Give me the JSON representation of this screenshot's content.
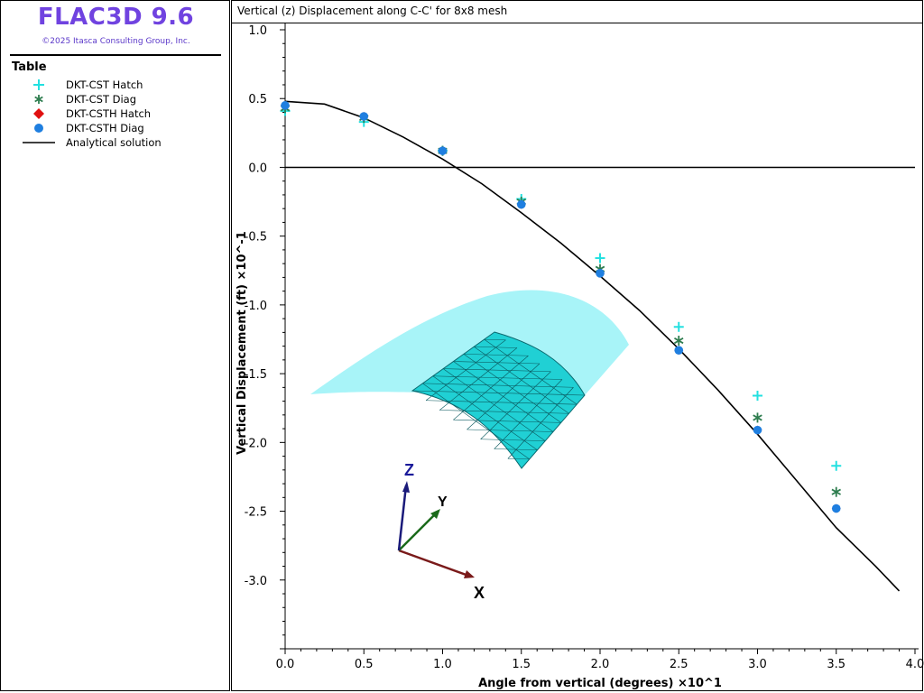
{
  "app": {
    "title": "FLAC3D 9.6",
    "copyright": "©2025 Itasca Consulting Group, Inc.",
    "accent_color": "#7043e0"
  },
  "legend": {
    "title": "Table",
    "items": [
      {
        "label": "DKT-CST Hatch",
        "symbol": "plus",
        "color": "#22e0e0"
      },
      {
        "label": "DKT-CST Diag",
        "symbol": "asterisk",
        "color": "#2e7d4f"
      },
      {
        "label": "DKT-CSTH Hatch",
        "symbol": "diamond",
        "color": "#e01010"
      },
      {
        "label": "DKT-CSTH Diag",
        "symbol": "circle",
        "color": "#1f7fe0"
      },
      {
        "label": "Analytical solution",
        "symbol": "line",
        "color": "#000000"
      }
    ]
  },
  "chart_data": {
    "type": "scatter",
    "title": "Vertical (z) Displacement along C-C' for 8x8 mesh",
    "xlabel": "Angle from vertical (degrees) ×10^1",
    "ylabel": "Vertical Displacement  (ft) ×10^-1",
    "xlim": [
      0,
      4.0
    ],
    "ylim": [
      -3.5,
      1.0
    ],
    "x_ticks": [
      "0.0",
      "0.5",
      "1.0",
      "1.5",
      "2.0",
      "2.5",
      "3.0",
      "3.5",
      "4.0"
    ],
    "y_ticks": [
      "1.0",
      "0.5",
      "0.0",
      "-0.5",
      "-1.0",
      "-1.5",
      "-2.0",
      "-2.5",
      "-3.0"
    ],
    "reference_line_y": 0.0,
    "series": [
      {
        "name": "DKT-CST Hatch",
        "marker": "plus",
        "color": "#22e0e0",
        "x": [
          0.0,
          0.5,
          1.0,
          1.5,
          2.0,
          2.5,
          3.0,
          3.5
        ],
        "y": [
          0.41,
          0.33,
          0.12,
          -0.23,
          -0.66,
          -1.16,
          -1.66,
          -2.17
        ]
      },
      {
        "name": "DKT-CST Diag",
        "marker": "asterisk",
        "color": "#2e7d4f",
        "x": [
          0.0,
          0.5,
          1.0,
          1.5,
          2.0,
          2.5,
          3.0,
          3.5
        ],
        "y": [
          0.43,
          0.36,
          0.12,
          -0.25,
          -0.74,
          -1.26,
          -1.82,
          -2.36
        ]
      },
      {
        "name": "DKT-CSTH Hatch",
        "marker": "diamond",
        "color": "#e01010",
        "x": [
          0.0,
          0.5,
          1.0,
          1.5,
          2.0,
          2.5,
          3.0,
          3.5
        ],
        "y": [
          0.45,
          0.37,
          0.12,
          -0.27,
          -0.77,
          -1.33,
          -1.91,
          -2.48
        ]
      },
      {
        "name": "DKT-CSTH Diag",
        "marker": "circle",
        "color": "#1f7fe0",
        "x": [
          0.0,
          0.5,
          1.0,
          1.5,
          2.0,
          2.5,
          3.0,
          3.5
        ],
        "y": [
          0.45,
          0.37,
          0.12,
          -0.27,
          -0.77,
          -1.33,
          -1.91,
          -2.48
        ]
      },
      {
        "name": "Analytical solution",
        "marker": "line",
        "color": "#000000",
        "x": [
          0.0,
          0.25,
          0.5,
          0.75,
          1.0,
          1.25,
          1.5,
          1.75,
          2.0,
          2.25,
          2.5,
          2.75,
          3.0,
          3.25,
          3.5,
          3.75,
          3.9
        ],
        "y": [
          0.48,
          0.46,
          0.36,
          0.22,
          0.06,
          -0.12,
          -0.33,
          -0.55,
          -0.79,
          -1.04,
          -1.32,
          -1.62,
          -1.94,
          -2.28,
          -2.62,
          -2.9,
          -3.08
        ]
      }
    ]
  },
  "inset": {
    "axis_labels": {
      "x": "X",
      "y": "Y",
      "z": "Z"
    },
    "axis_colors": {
      "x": "#7a1a1a",
      "y": "#1a6a1a",
      "z": "#1a1a7a"
    },
    "shell_color": "#a8f4f8",
    "mesh_color": "#20d0d4"
  }
}
